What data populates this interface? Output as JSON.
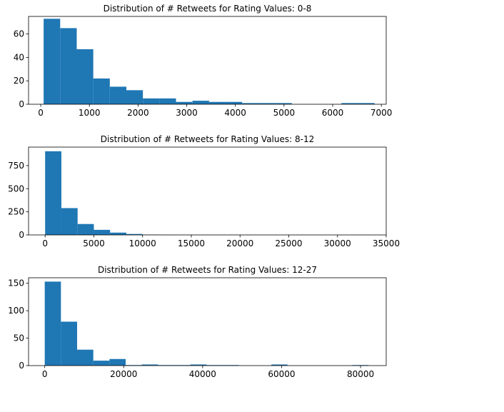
{
  "chart_data": [
    {
      "type": "bar",
      "title": "Distribution of # Retweets for Rating Values: 0-8",
      "xlabel": "",
      "ylabel": "",
      "xlim": [
        -250,
        7100
      ],
      "ylim": [
        0,
        75
      ],
      "xticks": [
        0,
        1000,
        2000,
        3000,
        4000,
        5000,
        6000,
        7000
      ],
      "yticks": [
        0,
        20,
        40,
        60
      ],
      "bin_edges": [
        60,
        400,
        740,
        1080,
        1420,
        1760,
        2100,
        2440,
        2780,
        3120,
        3460,
        3800,
        4140,
        4480,
        4820,
        5160,
        5500,
        5840,
        6180,
        6520,
        6860
      ],
      "values": [
        73,
        65,
        47,
        22,
        15,
        12,
        5,
        5,
        2,
        3,
        2,
        2,
        1,
        1,
        1,
        0,
        0,
        0,
        1,
        1
      ],
      "color": "#1f77b4",
      "grid": false
    },
    {
      "type": "bar",
      "title": "Distribution of # Retweets for Rating Values: 8-12",
      "xlabel": "",
      "ylabel": "",
      "xlim": [
        -1700,
        35000
      ],
      "ylim": [
        0,
        950
      ],
      "xticks": [
        0,
        5000,
        10000,
        15000,
        20000,
        25000,
        30000,
        35000
      ],
      "yticks": [
        0,
        250,
        500,
        750
      ],
      "bin_edges": [
        0,
        1667,
        3333,
        5000,
        6667,
        8333,
        10000,
        11667,
        13333,
        15000,
        16667,
        18333,
        20000,
        21667,
        23333,
        25000,
        26667,
        28333,
        30000,
        31667,
        33333
      ],
      "values": [
        905,
        290,
        118,
        55,
        25,
        10,
        3,
        2,
        1,
        1,
        1,
        1,
        1,
        0,
        0,
        1,
        0,
        0,
        0,
        1
      ],
      "color": "#1f77b4",
      "grid": false
    },
    {
      "type": "bar",
      "title": "Distribution of # Retweets for Rating Values: 12-27",
      "xlabel": "",
      "ylabel": "",
      "xlim": [
        -4100,
        86500
      ],
      "ylim": [
        0,
        160
      ],
      "xticks": [
        0,
        20000,
        40000,
        60000,
        80000
      ],
      "yticks": [
        0,
        50,
        100,
        150
      ],
      "bin_edges": [
        0,
        4100,
        8200,
        12300,
        16400,
        20500,
        24600,
        28700,
        32800,
        36900,
        41000,
        45100,
        49200,
        53300,
        57400,
        61500,
        65600,
        69700,
        73800,
        77900,
        82000
      ],
      "values": [
        153,
        80,
        29,
        9,
        12,
        1,
        2,
        1,
        1,
        2,
        1,
        1,
        0,
        0,
        2,
        0,
        0,
        0,
        0,
        1
      ],
      "color": "#1f77b4",
      "grid": false
    }
  ]
}
